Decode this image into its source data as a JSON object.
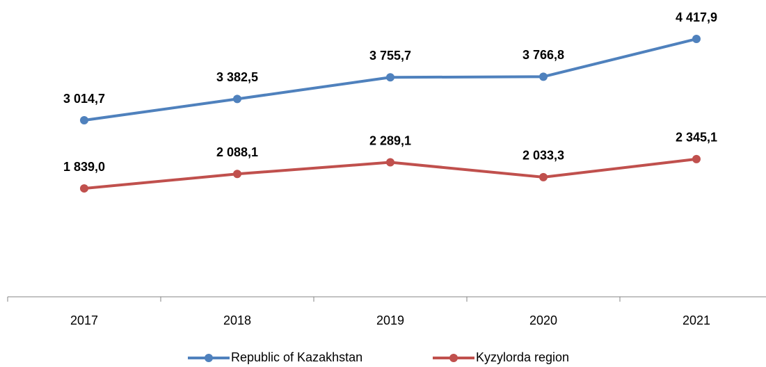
{
  "chart_data": {
    "type": "line",
    "categories": [
      "2017",
      "2018",
      "2019",
      "2020",
      "2021"
    ],
    "ylim": [
      0,
      5000
    ],
    "series": [
      {
        "name": "Republic of Kazakhstan",
        "color": "#4f81bd",
        "values": [
          3014.7,
          3382.5,
          3755.7,
          3766.8,
          4417.9
        ],
        "value_labels": [
          "3 014,7",
          "3 382,5",
          "3 755,7",
          "3 766,8",
          "4 417,9"
        ]
      },
      {
        "name": "Kyzylorda region",
        "color": "#c0504d",
        "values": [
          1839.0,
          2088.1,
          2289.1,
          2033.3,
          2345.1
        ],
        "value_labels": [
          "1 839,0",
          "2 088,1",
          "2 289,1",
          "2 033,3",
          "2 345,1"
        ]
      }
    ]
  }
}
